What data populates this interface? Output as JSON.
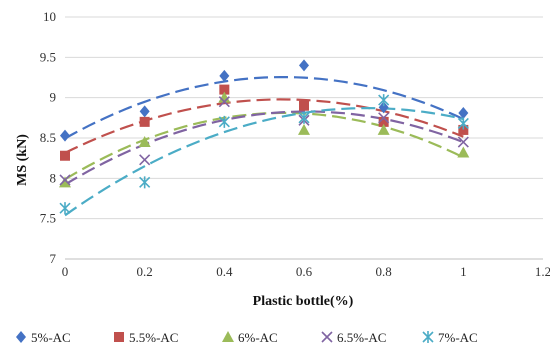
{
  "chart_data": {
    "type": "scatter",
    "title": "",
    "xlabel": "Plastic bottle(%)",
    "ylabel": "MS (kN)",
    "xlim": [
      0,
      1.2
    ],
    "ylim": [
      7,
      10
    ],
    "x_ticks": [
      "0",
      "0.2",
      "0.4",
      "0.6",
      "0.8",
      "1",
      "1.2"
    ],
    "y_ticks": [
      "7",
      "7.5",
      "8",
      "8.5",
      "9",
      "9.5",
      "10"
    ],
    "grid": "horizontal",
    "legend_position": "bottom",
    "trendline": "polynomial, order 2, dashed",
    "x": [
      0,
      0.2,
      0.4,
      0.6,
      0.8,
      1.0
    ],
    "series": [
      {
        "name": "5%-AC",
        "marker": "diamond",
        "color": "#4472C4",
        "values": [
          8.53,
          8.83,
          9.27,
          9.4,
          8.88,
          8.81
        ]
      },
      {
        "name": "5.5%-AC",
        "marker": "square",
        "color": "#C0504D",
        "values": [
          8.28,
          8.7,
          9.1,
          8.9,
          8.7,
          8.6
        ]
      },
      {
        "name": "6%-AC",
        "marker": "triangle",
        "color": "#9BBB59",
        "values": [
          7.95,
          8.45,
          9.0,
          8.6,
          8.6,
          8.32
        ]
      },
      {
        "name": "6.5%-AC",
        "marker": "x",
        "color": "#8064A2",
        "values": [
          7.98,
          8.23,
          8.95,
          8.72,
          8.75,
          8.45
        ]
      },
      {
        "name": "7%-AC",
        "marker": "star",
        "color": "#4BACC6",
        "values": [
          7.63,
          7.95,
          8.7,
          8.75,
          8.97,
          8.68
        ]
      }
    ]
  }
}
